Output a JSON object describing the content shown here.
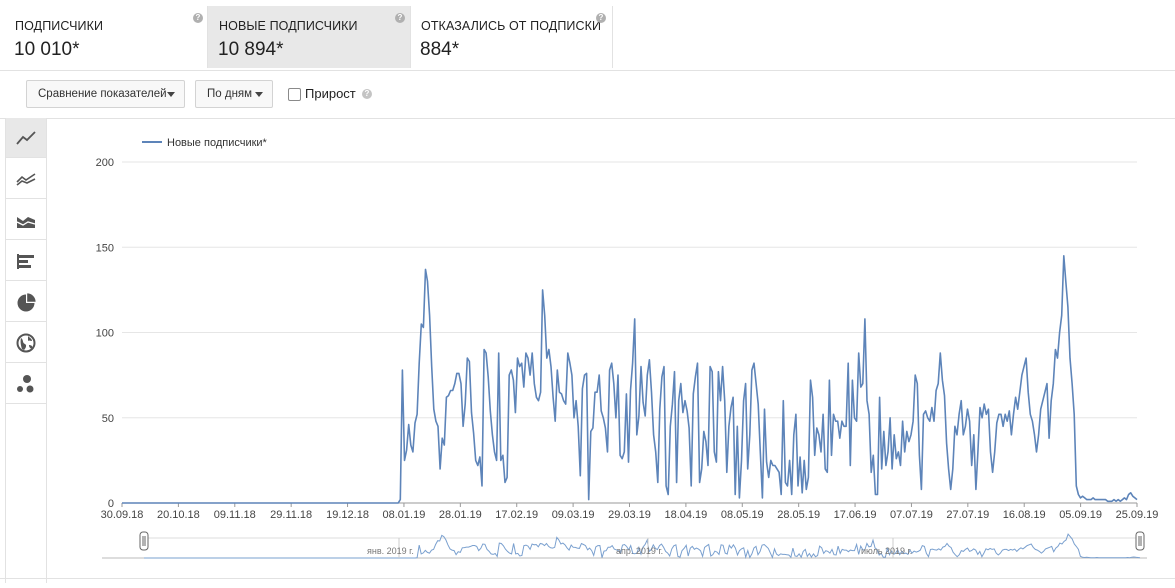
{
  "metrics": [
    {
      "label": "подписчики",
      "value": "10 010*",
      "help": "?"
    },
    {
      "label": "новые подписчики",
      "value": "10 894*",
      "help": "?",
      "selected": true
    },
    {
      "label": "отказались от подписки",
      "value": "884*",
      "help": "?"
    }
  ],
  "controls": {
    "compare_label": "Сравнение показателей",
    "period_label": "По дням",
    "growth_label": "Прирост",
    "growth_checked": false,
    "help": "?"
  },
  "sidebar": {
    "icons": [
      "line-chart-icon",
      "multi-line-chart-icon",
      "stacked-area-icon",
      "bar-chart-icon",
      "pie-chart-icon",
      "globe-icon",
      "bubble-chart-icon"
    ],
    "active": "line-chart-icon"
  },
  "colors": {
    "series": "#5d84b9",
    "navigator": "#7aa0cf",
    "grid": "#e6e6e6"
  },
  "chart_data": {
    "type": "line",
    "legend": "Новые подписчики*",
    "legend_position": "top-left",
    "ylim": [
      0,
      200
    ],
    "yticks": [
      "0",
      "50",
      "100",
      "150",
      "200"
    ],
    "grid": true,
    "xticks": [
      "30.09.18",
      "20.10.18",
      "09.11.18",
      "29.11.18",
      "19.12.18",
      "08.01.19",
      "28.01.19",
      "17.02.19",
      "09.03.19",
      "29.03.19",
      "18.04.19",
      "08.05.19",
      "28.05.19",
      "17.06.19",
      "07.07.19",
      "27.07.19",
      "16.08.19",
      "05.09.19",
      "25.09.19"
    ],
    "navigator_labels": [
      "янв. 2019 г.",
      "апр. 2019 г.",
      "июль 2019 г."
    ],
    "x_start": "30.09.18",
    "x_end": "25.09.19",
    "series": [
      {
        "name": "Новые подписчики*",
        "values": [
          0,
          0,
          0,
          0,
          0,
          0,
          0,
          0,
          0,
          0,
          0,
          0,
          0,
          0,
          0,
          0,
          0,
          0,
          0,
          0,
          0,
          0,
          0,
          0,
          0,
          0,
          0,
          0,
          0,
          0,
          0,
          0,
          0,
          0,
          0,
          0,
          0,
          0,
          0,
          0,
          0,
          0,
          0,
          0,
          0,
          0,
          0,
          0,
          0,
          0,
          0,
          0,
          0,
          0,
          0,
          0,
          0,
          0,
          0,
          0,
          0,
          0,
          0,
          0,
          0,
          0,
          0,
          0,
          0,
          0,
          0,
          0,
          0,
          0,
          0,
          0,
          0,
          0,
          0,
          0,
          0,
          0,
          0,
          0,
          0,
          0,
          0,
          0,
          0,
          0,
          0,
          0,
          0,
          0,
          0,
          0,
          0,
          0,
          0,
          0,
          0,
          0,
          0,
          0,
          0,
          0,
          0,
          0,
          0,
          0,
          0,
          0,
          0,
          0,
          0,
          0,
          0,
          0,
          0,
          0,
          0,
          0,
          0,
          0,
          0,
          0,
          0,
          0,
          0,
          0,
          0,
          0,
          0,
          2,
          78,
          25,
          31,
          46,
          34,
          30,
          47,
          52,
          82,
          105,
          103,
          137,
          130,
          110,
          80,
          55,
          48,
          45,
          20,
          38,
          34,
          62,
          63,
          66,
          66,
          70,
          76,
          76,
          70,
          45,
          58,
          85,
          83,
          53,
          41,
          25,
          22,
          27,
          10,
          90,
          88,
          74,
          54,
          40,
          30,
          25,
          88,
          25,
          28,
          12,
          15,
          75,
          78,
          72,
          53,
          85,
          80,
          82,
          68,
          88,
          85,
          75,
          88,
          70,
          62,
          60,
          65,
          125,
          110,
          85,
          90,
          80,
          62,
          48,
          78,
          65,
          64,
          60,
          58,
          88,
          82,
          75,
          50,
          60,
          45,
          16,
          67,
          75,
          76,
          2,
          42,
          44,
          65,
          65,
          75,
          54,
          50,
          44,
          30,
          78,
          82,
          70,
          50,
          75,
          28,
          26,
          30,
          64,
          24,
          66,
          82,
          108,
          40,
          51,
          80,
          59,
          51,
          75,
          84,
          65,
          40,
          30,
          12,
          55,
          74,
          80,
          10,
          5,
          45,
          58,
          77,
          12,
          60,
          70,
          53,
          60,
          54,
          44,
          10,
          64,
          74,
          82,
          12,
          20,
          42,
          36,
          22,
          80,
          77,
          30,
          24,
          77,
          60,
          80,
          60,
          18,
          45,
          56,
          62,
          5,
          45,
          3,
          25,
          60,
          70,
          20,
          40,
          78,
          82,
          70,
          58,
          30,
          3,
          55,
          24,
          15,
          25,
          22,
          22,
          20,
          18,
          5,
          60,
          12,
          10,
          25,
          5,
          40,
          52,
          10,
          27,
          6,
          25,
          8,
          15,
          72,
          62,
          28,
          44,
          40,
          30,
          52,
          20,
          18,
          72,
          28,
          52,
          48,
          48,
          38,
          48,
          45,
          45,
          82,
          22,
          72,
          50,
          48,
          88,
          68,
          70,
          108,
          60,
          52,
          18,
          28,
          5,
          5,
          62,
          20,
          42,
          22,
          30,
          50,
          20,
          40,
          26,
          30,
          22,
          48,
          30,
          42,
          36,
          40,
          48,
          75,
          70,
          28,
          8,
          52,
          54,
          50,
          48,
          56,
          48,
          66,
          70,
          88,
          72,
          63,
          35,
          20,
          8,
          20,
          45,
          40,
          52,
          60,
          40,
          45,
          55,
          48,
          22,
          40,
          8,
          30,
          56,
          50,
          58,
          52,
          55,
          30,
          18,
          30,
          47,
          52,
          52,
          45,
          52,
          48,
          54,
          40,
          52,
          62,
          55,
          65,
          75,
          80,
          85,
          65,
          52,
          48,
          40,
          30,
          40,
          55,
          60,
          65,
          70,
          38,
          60,
          70,
          90,
          85,
          100,
          110,
          145,
          130,
          115,
          85,
          70,
          52,
          10,
          5,
          3,
          4,
          3,
          2,
          2,
          2,
          3,
          2,
          2,
          2,
          2,
          2,
          2,
          1,
          1,
          1,
          2,
          1,
          2,
          1,
          2,
          3,
          2,
          5,
          6,
          4,
          3,
          2
        ]
      }
    ]
  }
}
